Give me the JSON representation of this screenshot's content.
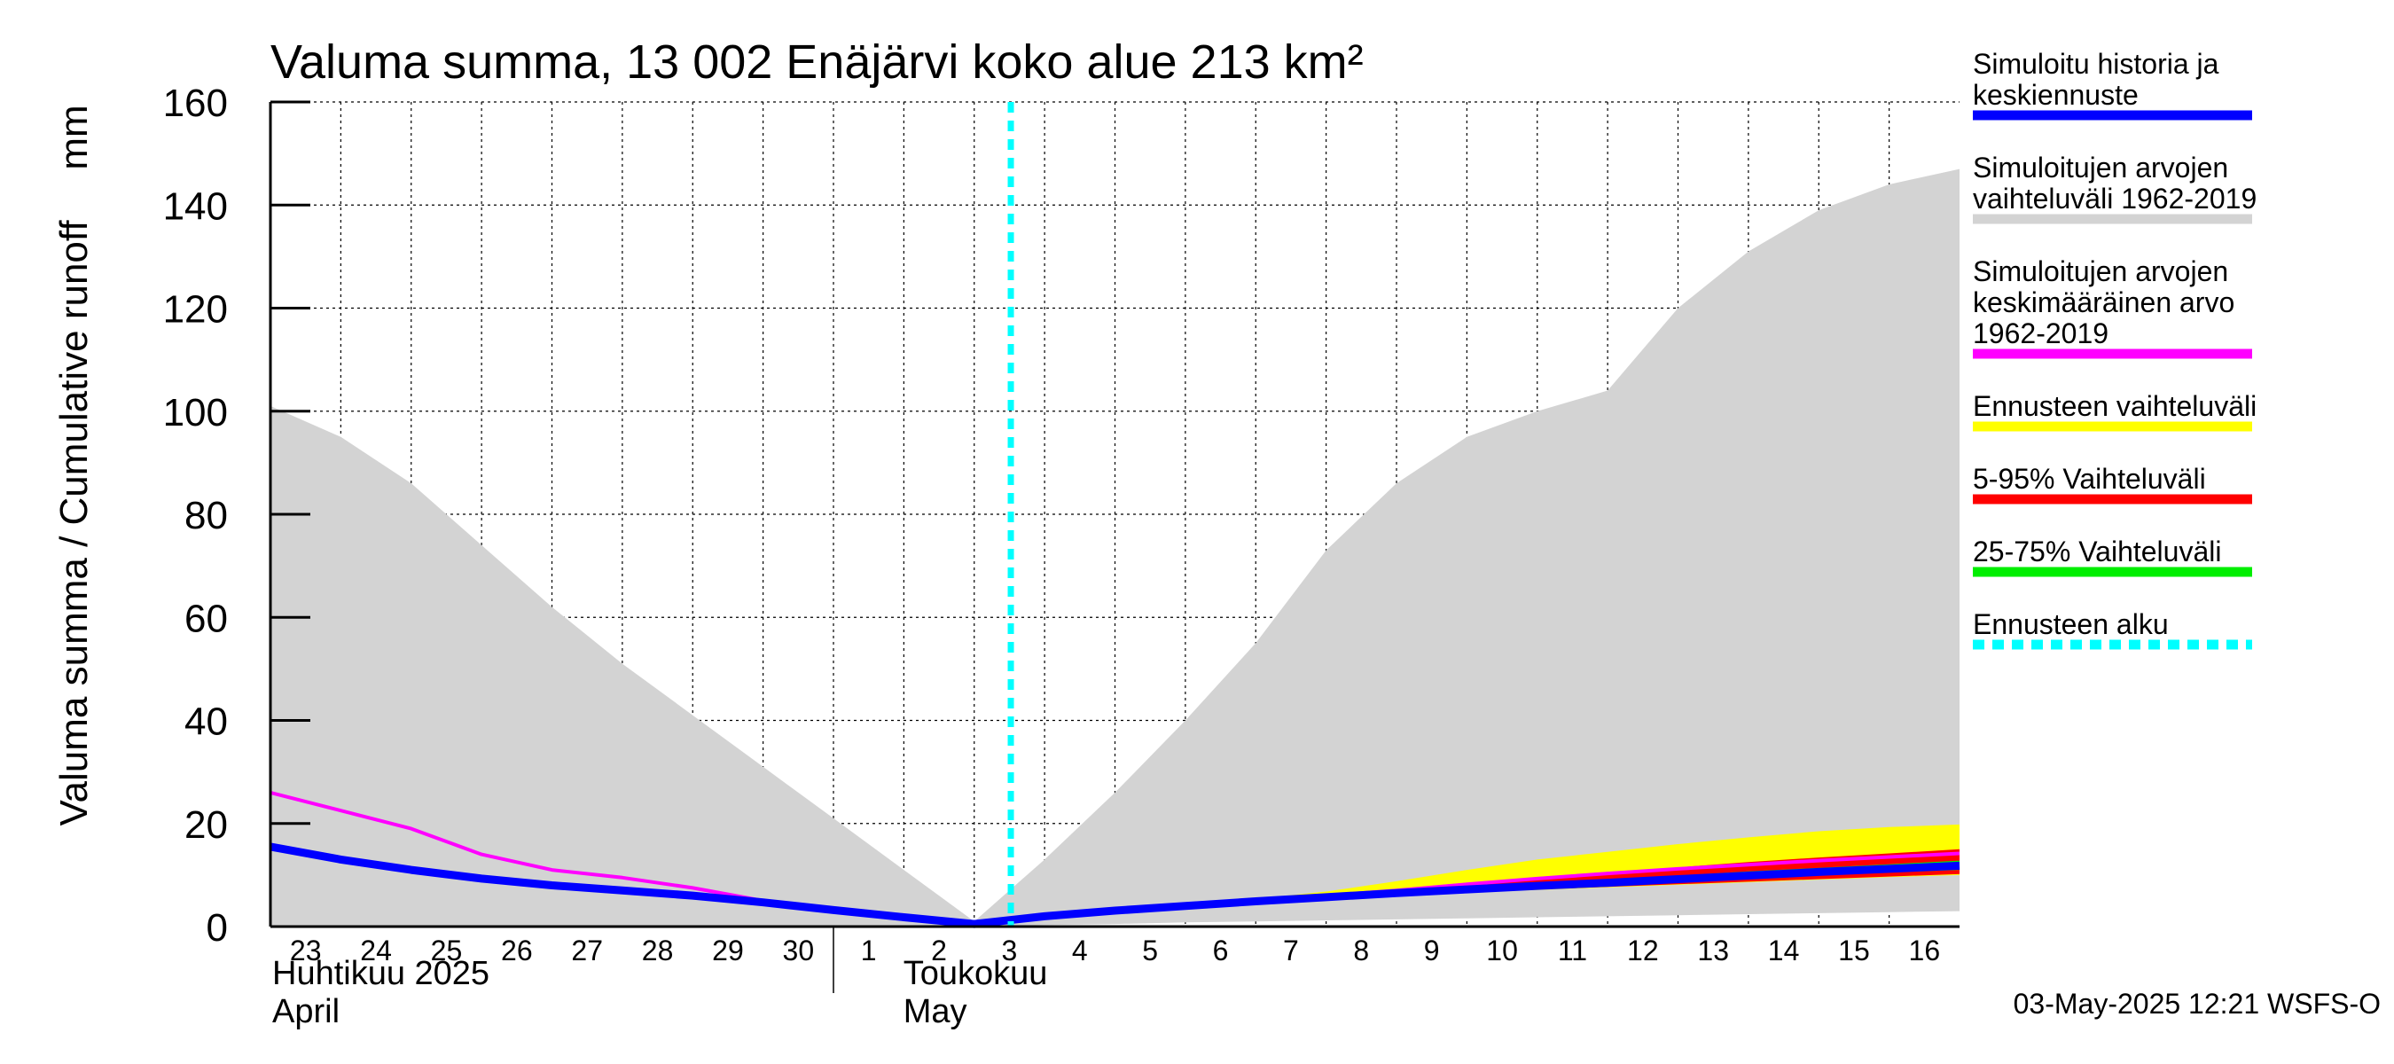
{
  "chart_data": {
    "type": "area",
    "title": "Valuma summa, 13 002 Enäjärvi koko alue 213 km²",
    "ylabel": "Valuma summa / Cumulative runoff",
    "yunit": "mm",
    "ylim": [
      0,
      160
    ],
    "yticks": [
      "0",
      "20",
      "40",
      "60",
      "80",
      "100",
      "120",
      "140",
      "160"
    ],
    "grid": true,
    "legend_position": "right",
    "xlim": [
      "2025-04-23",
      "2025-05-16"
    ],
    "x_day_labels": [
      "23",
      "24",
      "25",
      "26",
      "27",
      "28",
      "29",
      "30",
      "1",
      "2",
      "3",
      "4",
      "5",
      "6",
      "7",
      "8",
      "9",
      "10",
      "11",
      "12",
      "13",
      "14",
      "15",
      "16"
    ],
    "month_labels": [
      {
        "fi": "Huhtikuu  2025",
        "en": "April"
      },
      {
        "fi": "Toukokuu",
        "en": "May"
      }
    ],
    "forecast_start": "2025-05-03",
    "series": [
      {
        "name": "Simuloitujen arvojen vaihteluväli 1962-2019",
        "kind": "band",
        "color": "#d3d3d3",
        "x": [
          "2025-04-23",
          "2025-04-24",
          "2025-04-25",
          "2025-04-26",
          "2025-04-27",
          "2025-04-28",
          "2025-04-29",
          "2025-04-30",
          "2025-05-01",
          "2025-05-02",
          "2025-05-03",
          "2025-05-04",
          "2025-05-05",
          "2025-05-06",
          "2025-05-07",
          "2025-05-08",
          "2025-05-09",
          "2025-05-10",
          "2025-05-11",
          "2025-05-12",
          "2025-05-13",
          "2025-05-14",
          "2025-05-15",
          "2025-05-16",
          "2025-05-17"
        ],
        "upper": [
          101,
          95,
          86,
          74,
          62,
          51,
          41,
          31,
          21,
          11,
          1,
          13,
          26,
          40,
          55,
          73,
          86,
          95,
          100,
          104,
          120,
          131,
          139,
          144,
          147
        ],
        "lower": [
          0,
          0,
          0,
          0,
          0,
          0,
          0,
          0,
          0,
          0,
          0,
          0.3,
          0.5,
          0.8,
          1,
          1.2,
          1.4,
          1.6,
          1.8,
          2,
          2.2,
          2.4,
          2.6,
          2.8,
          3
        ]
      },
      {
        "name": "Ennusteen vaihteluväli",
        "kind": "band",
        "color": "#ffff00",
        "x": [
          "2025-05-03",
          "2025-05-04",
          "2025-05-05",
          "2025-05-06",
          "2025-05-07",
          "2025-05-08",
          "2025-05-09",
          "2025-05-10",
          "2025-05-11",
          "2025-05-12",
          "2025-05-13",
          "2025-05-14",
          "2025-05-15",
          "2025-05-16",
          "2025-05-17"
        ],
        "upper": [
          0.5,
          2,
          3.2,
          4.3,
          5.4,
          6.8,
          8.8,
          11,
          13,
          14.5,
          16,
          17.3,
          18.5,
          19.3,
          19.8
        ],
        "lower": [
          0.5,
          2,
          3,
          3.8,
          4.6,
          5.3,
          6,
          6.6,
          7.1,
          7.6,
          8.1,
          8.6,
          9.1,
          9.6,
          10
        ]
      },
      {
        "name": "5-95% Vaihteluväli",
        "kind": "band",
        "color": "#ff0000",
        "x": [
          "2025-05-03",
          "2025-05-04",
          "2025-05-05",
          "2025-05-06",
          "2025-05-07",
          "2025-05-08",
          "2025-05-09",
          "2025-05-10",
          "2025-05-11",
          "2025-05-12",
          "2025-05-13",
          "2025-05-14",
          "2025-05-15",
          "2025-05-16",
          "2025-05-17"
        ],
        "upper": [
          0.5,
          2,
          3.2,
          4.2,
          5.1,
          6.1,
          7.3,
          8.5,
          9.6,
          10.6,
          11.5,
          12.5,
          13.4,
          14.2,
          15
        ],
        "lower": [
          0.5,
          2,
          3,
          3.9,
          4.7,
          5.4,
          6.1,
          6.7,
          7.2,
          7.7,
          8.2,
          8.7,
          9.2,
          9.7,
          10.2
        ]
      },
      {
        "name": "25-75% Vaihteluväli",
        "kind": "band",
        "color": "#00ee00",
        "x": [
          "2025-05-03",
          "2025-05-04",
          "2025-05-05",
          "2025-05-06",
          "2025-05-07",
          "2025-05-08",
          "2025-05-09",
          "2025-05-10",
          "2025-05-11",
          "2025-05-12",
          "2025-05-13",
          "2025-05-14",
          "2025-05-15",
          "2025-05-16",
          "2025-05-17"
        ],
        "upper": [
          0.5,
          2,
          3.1,
          4.1,
          5,
          5.9,
          6.8,
          7.6,
          8.4,
          9.2,
          9.9,
          10.7,
          11.4,
          12.1,
          12.8
        ],
        "lower": [
          0.5,
          2,
          3,
          4,
          4.8,
          5.6,
          6.3,
          7,
          7.6,
          8.2,
          8.8,
          9.4,
          10,
          10.5,
          11
        ]
      },
      {
        "name": "Simuloitujen arvojen keskimääräinen arvo 1962-2019",
        "kind": "line",
        "color": "#ff00ff",
        "x": [
          "2025-04-23",
          "2025-04-24",
          "2025-04-25",
          "2025-04-26",
          "2025-04-27",
          "2025-04-28",
          "2025-04-29",
          "2025-04-30",
          "2025-05-01",
          "2025-05-02",
          "2025-05-03",
          "2025-05-04",
          "2025-05-05",
          "2025-05-06",
          "2025-05-07",
          "2025-05-08",
          "2025-05-09",
          "2025-05-10",
          "2025-05-11",
          "2025-05-12",
          "2025-05-13",
          "2025-05-14",
          "2025-05-15",
          "2025-05-16",
          "2025-05-17"
        ],
        "values": [
          26,
          22.5,
          19,
          14,
          11,
          9.5,
          7.5,
          5,
          3,
          1.5,
          0.5,
          2,
          3.1,
          4.1,
          5,
          6,
          7,
          8.2,
          9.3,
          10.3,
          11.2,
          12,
          12.8,
          13.5,
          14.2
        ]
      },
      {
        "name": "Simuloitu historia ja keskiennuste",
        "kind": "line",
        "color": "#0000ff",
        "x": [
          "2025-04-23",
          "2025-04-24",
          "2025-04-25",
          "2025-04-26",
          "2025-04-27",
          "2025-04-28",
          "2025-04-29",
          "2025-04-30",
          "2025-05-01",
          "2025-05-02",
          "2025-05-03",
          "2025-05-04",
          "2025-05-05",
          "2025-05-06",
          "2025-05-07",
          "2025-05-08",
          "2025-05-09",
          "2025-05-10",
          "2025-05-11",
          "2025-05-12",
          "2025-05-13",
          "2025-05-14",
          "2025-05-15",
          "2025-05-16",
          "2025-05-17"
        ],
        "values": [
          15.5,
          13,
          11,
          9.3,
          8,
          7,
          6,
          4.7,
          3.2,
          1.8,
          0.5,
          2,
          3.1,
          4,
          4.9,
          5.7,
          6.5,
          7.2,
          7.9,
          8.5,
          9.2,
          9.9,
          10.6,
          11.2,
          11.8
        ]
      }
    ],
    "legend": [
      {
        "lines": [
          "Simuloitu historia ja",
          "keskiennuste"
        ],
        "color": "#0000ff",
        "style": "solid"
      },
      {
        "lines": [
          "Simuloitujen arvojen",
          "vaihteluväli 1962-2019"
        ],
        "color": "#d3d3d3",
        "style": "solid"
      },
      {
        "lines": [
          "Simuloitujen arvojen",
          "keskimääräinen arvo",
          "   1962-2019"
        ],
        "color": "#ff00ff",
        "style": "solid"
      },
      {
        "lines": [
          "Ennusteen vaihteluväli"
        ],
        "color": "#ffff00",
        "style": "solid"
      },
      {
        "lines": [
          "5-95% Vaihteluväli"
        ],
        "color": "#ff0000",
        "style": "solid"
      },
      {
        "lines": [
          "25-75% Vaihteluväli"
        ],
        "color": "#00ee00",
        "style": "solid"
      },
      {
        "lines": [
          "Ennusteen alku"
        ],
        "color": "#00ffff",
        "style": "dashed"
      }
    ],
    "timestamp": "03-May-2025 12:21 WSFS-O"
  }
}
